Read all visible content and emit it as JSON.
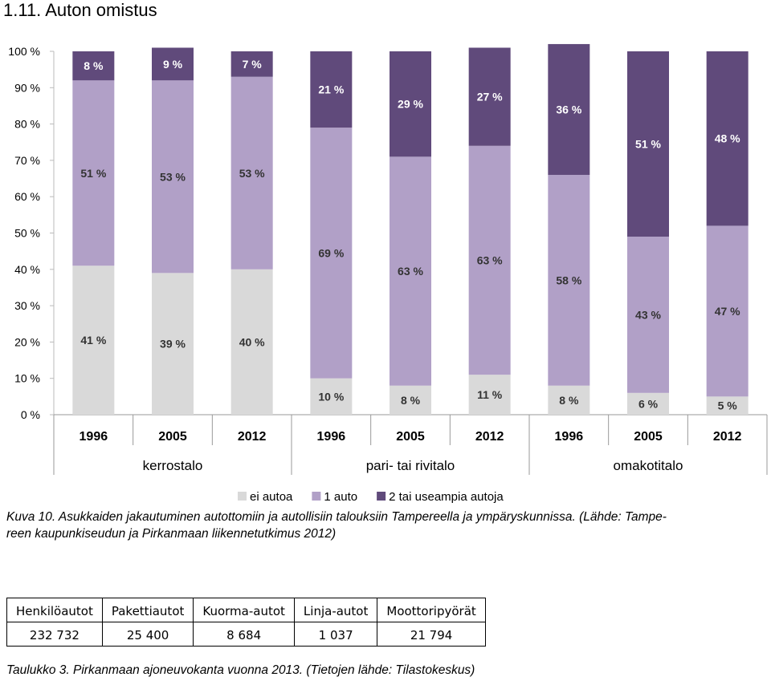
{
  "heading": "1.11.   Auton omistus",
  "chart_data": {
    "type": "stacked-bar",
    "categories": [
      "1996",
      "2005",
      "2012",
      "1996",
      "2005",
      "2012",
      "1996",
      "2005",
      "2012"
    ],
    "groups": [
      "kerrostalo",
      "pari- tai rivitalo",
      "omakotitalo"
    ],
    "series": [
      {
        "name": "ei autoa",
        "color": "#d9d9d9",
        "values": [
          41,
          39,
          40,
          10,
          8,
          11,
          8,
          6,
          5
        ],
        "value_labels": [
          "41 %",
          "39 %",
          "40 %",
          "10 %",
          "8 %",
          "11 %",
          "8 %",
          "6 %",
          "5 %"
        ]
      },
      {
        "name": "1 auto",
        "color": "#b1a0c7",
        "values": [
          51,
          53,
          53,
          69,
          63,
          63,
          58,
          43,
          47
        ],
        "value_labels": [
          "51 %",
          "53 %",
          "53 %",
          "69 %",
          "63 %",
          "63 %",
          "58 %",
          "43 %",
          "47 %"
        ]
      },
      {
        "name": "2 tai useampia autoja",
        "color": "#604a7b",
        "values": [
          8,
          9,
          7,
          21,
          29,
          27,
          36,
          51,
          48
        ],
        "value_labels": [
          "8 %",
          "9 %",
          "7 %",
          "21 %",
          "29 %",
          "27 %",
          "36 %",
          "51 %",
          "48 %"
        ]
      }
    ],
    "ylim": [
      0,
      100
    ],
    "yticks": [
      {
        "value": 0,
        "label": "0 %"
      },
      {
        "value": 10,
        "label": "10 %"
      },
      {
        "value": 20,
        "label": "20 %"
      },
      {
        "value": 30,
        "label": "30 %"
      },
      {
        "value": 40,
        "label": "40 %"
      },
      {
        "value": 50,
        "label": "50 %"
      },
      {
        "value": 60,
        "label": "60 %"
      },
      {
        "value": 70,
        "label": "70 %"
      },
      {
        "value": 80,
        "label": "80 %"
      },
      {
        "value": 90,
        "label": "90 %"
      },
      {
        "value": 100,
        "label": "100 %"
      }
    ]
  },
  "caption": [
    "Kuva 10. Asukkaiden jakautuminen autottomiin ja autollisiin talouksiin Tampereella ja ympäryskunnissa. (Lähde: Tampe-",
    "reen kaupunkiseudun ja Pirkanmaan liikennetutkimus 2012)"
  ],
  "table": {
    "header": [
      "Henkilöautot",
      "Pakettiautot",
      "Kuorma-autot",
      "Linja-autot",
      "Moottoripyörät"
    ],
    "rows": [
      [
        "232 732",
        "25 400",
        "8 684",
        "1 037",
        "21 794"
      ]
    ]
  },
  "table_caption": "Taulukko 3. Pirkanmaan ajoneuvokanta vuonna 2013. (Tietojen lähde: Tilastokeskus)"
}
